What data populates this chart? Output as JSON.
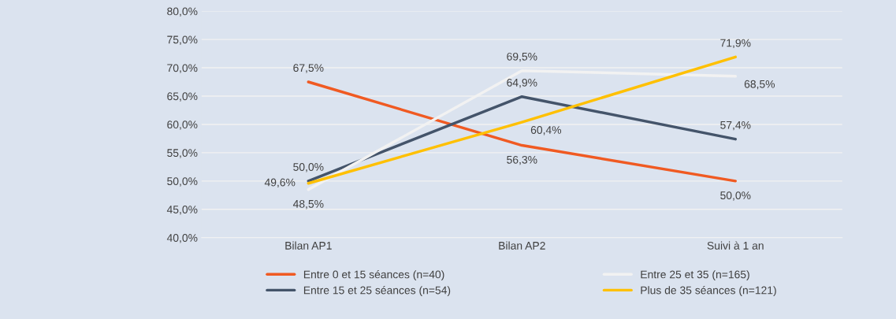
{
  "chart_data": {
    "type": "line",
    "categories": [
      "Bilan AP1",
      "Bilan AP2",
      "Suivi à 1 an"
    ],
    "series": [
      {
        "name": "Entre 0 et 15 séances (n=40)",
        "color": "#f05a22",
        "values": [
          67.5,
          56.3,
          50.0
        ],
        "value_labels": [
          "67,5%",
          "56,3%",
          "50,0%"
        ]
      },
      {
        "name": "Entre 15 et 25 séances (n=54)",
        "color": "#44546a",
        "values": [
          50.0,
          64.9,
          57.4
        ],
        "value_labels": [
          "50,0%",
          "64,9%",
          "57,4%"
        ]
      },
      {
        "name": "Entre 25 et 35 (n=165)",
        "color": "#f2f2f2",
        "values": [
          48.5,
          69.5,
          68.5
        ],
        "value_labels": [
          "48,5%",
          "69,5%",
          "68,5%"
        ]
      },
      {
        "name": "Plus de 35 séances (n=121)",
        "color": "#ffc000",
        "values": [
          49.6,
          60.4,
          71.9
        ],
        "value_labels": [
          "49,6%",
          "60,4%",
          "71,9%"
        ]
      }
    ],
    "ylim": [
      40,
      80
    ],
    "yticks": [
      {
        "value": 40,
        "label": "40,0%"
      },
      {
        "value": 45,
        "label": "45,0%"
      },
      {
        "value": 50,
        "label": "50,0%"
      },
      {
        "value": 55,
        "label": "55,0%"
      },
      {
        "value": 60,
        "label": "60,0%"
      },
      {
        "value": 65,
        "label": "65,0%"
      },
      {
        "value": 70,
        "label": "70,0%"
      },
      {
        "value": 75,
        "label": "75,0%"
      },
      {
        "value": 80,
        "label": "80,0%"
      }
    ],
    "grid": "y",
    "legend": "bottom",
    "marker": "none",
    "line_style": "solid"
  }
}
